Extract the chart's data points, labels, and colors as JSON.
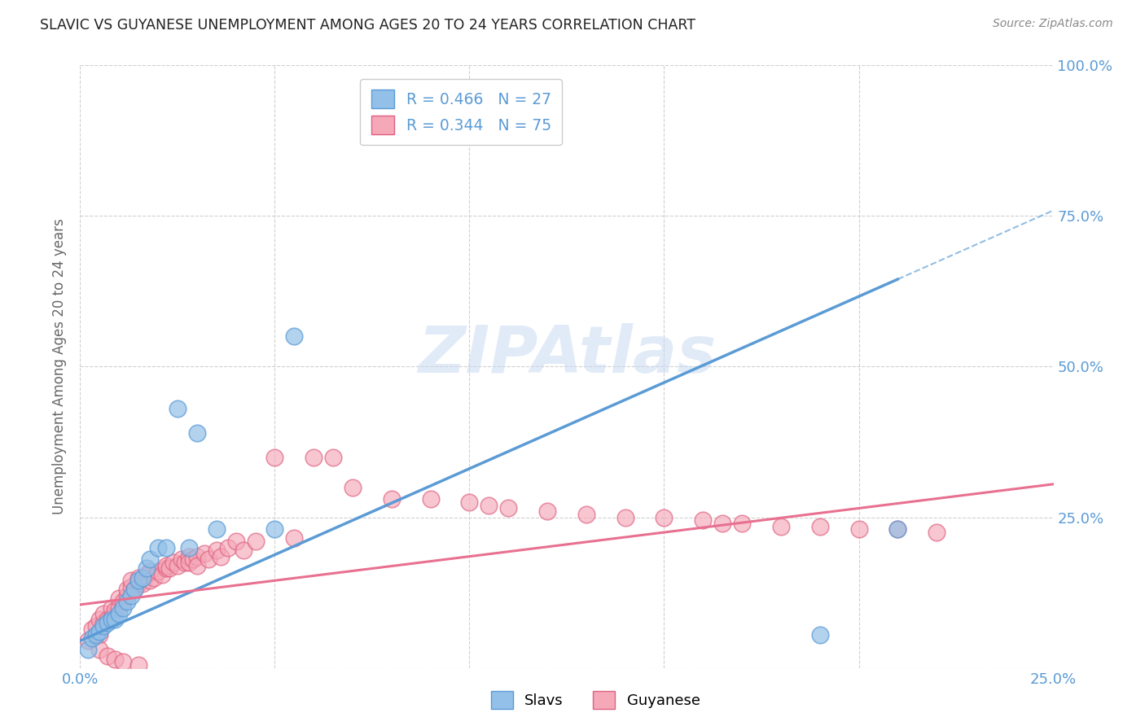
{
  "title": "SLAVIC VS GUYANESE UNEMPLOYMENT AMONG AGES 20 TO 24 YEARS CORRELATION CHART",
  "source": "Source: ZipAtlas.com",
  "ylabel": "Unemployment Among Ages 20 to 24 years",
  "xlim": [
    0.0,
    0.25
  ],
  "ylim": [
    0.0,
    1.0
  ],
  "xticks": [
    0.0,
    0.05,
    0.1,
    0.15,
    0.2,
    0.25
  ],
  "yticks": [
    0.0,
    0.25,
    0.5,
    0.75,
    1.0
  ],
  "ytick_labels_right": [
    "",
    "25.0%",
    "50.0%",
    "75.0%",
    "100.0%"
  ],
  "xtick_labels": [
    "0.0%",
    "",
    "",
    "",
    "",
    "25.0%"
  ],
  "tick_color": "#5b9bd5",
  "grid_color": "#d0d0d0",
  "watermark": "ZIPAtlas",
  "watermark_color": "#c5d8f0",
  "slavs_color": "#92c0e8",
  "slavs_edge_color": "#5b9bd5",
  "guyanese_color": "#f4a8b8",
  "guyanese_edge_color": "#e06080",
  "slavs_line_color": "#5b9bd5",
  "guyanese_line_color": "#e87090",
  "legend_slavs_label": "R = 0.466   N = 27",
  "legend_guyanese_label": "R = 0.344   N = 75",
  "slavs_line_x0": 0.0,
  "slavs_line_y0": 0.045,
  "slavs_line_x1": 0.21,
  "slavs_line_y1": 0.645,
  "slavs_line_xdash_end": 0.25,
  "guyanese_line_x0": 0.0,
  "guyanese_line_y0": 0.105,
  "guyanese_line_x1": 0.25,
  "guyanese_line_y1": 0.305,
  "slavs_x": [
    0.002,
    0.003,
    0.004,
    0.005,
    0.006,
    0.007,
    0.008,
    0.009,
    0.01,
    0.011,
    0.012,
    0.013,
    0.014,
    0.015,
    0.016,
    0.017,
    0.018,
    0.02,
    0.022,
    0.025,
    0.028,
    0.03,
    0.035,
    0.05,
    0.055,
    0.19,
    0.21
  ],
  "slavs_y": [
    0.03,
    0.05,
    0.055,
    0.06,
    0.07,
    0.075,
    0.08,
    0.08,
    0.09,
    0.1,
    0.11,
    0.12,
    0.13,
    0.145,
    0.15,
    0.165,
    0.18,
    0.2,
    0.2,
    0.43,
    0.2,
    0.39,
    0.23,
    0.23,
    0.55,
    0.055,
    0.23
  ],
  "guyanese_x": [
    0.002,
    0.003,
    0.004,
    0.005,
    0.005,
    0.006,
    0.006,
    0.007,
    0.008,
    0.008,
    0.009,
    0.01,
    0.01,
    0.011,
    0.012,
    0.012,
    0.013,
    0.013,
    0.014,
    0.015,
    0.015,
    0.016,
    0.017,
    0.018,
    0.018,
    0.019,
    0.02,
    0.021,
    0.022,
    0.022,
    0.023,
    0.024,
    0.025,
    0.026,
    0.027,
    0.028,
    0.028,
    0.029,
    0.03,
    0.03,
    0.032,
    0.033,
    0.035,
    0.036,
    0.038,
    0.04,
    0.042,
    0.045,
    0.05,
    0.055,
    0.06,
    0.065,
    0.07,
    0.08,
    0.09,
    0.1,
    0.105,
    0.11,
    0.12,
    0.13,
    0.14,
    0.15,
    0.16,
    0.165,
    0.17,
    0.18,
    0.19,
    0.2,
    0.21,
    0.22,
    0.005,
    0.007,
    0.009,
    0.011,
    0.015
  ],
  "guyanese_y": [
    0.045,
    0.065,
    0.07,
    0.055,
    0.08,
    0.075,
    0.09,
    0.08,
    0.085,
    0.1,
    0.095,
    0.1,
    0.115,
    0.11,
    0.12,
    0.13,
    0.135,
    0.145,
    0.13,
    0.14,
    0.15,
    0.14,
    0.155,
    0.145,
    0.16,
    0.15,
    0.16,
    0.155,
    0.165,
    0.17,
    0.165,
    0.175,
    0.17,
    0.18,
    0.175,
    0.185,
    0.175,
    0.18,
    0.185,
    0.17,
    0.19,
    0.18,
    0.195,
    0.185,
    0.2,
    0.21,
    0.195,
    0.21,
    0.35,
    0.215,
    0.35,
    0.35,
    0.3,
    0.28,
    0.28,
    0.275,
    0.27,
    0.265,
    0.26,
    0.255,
    0.25,
    0.25,
    0.245,
    0.24,
    0.24,
    0.235,
    0.235,
    0.23,
    0.23,
    0.225,
    0.03,
    0.02,
    0.015,
    0.01,
    0.005
  ]
}
